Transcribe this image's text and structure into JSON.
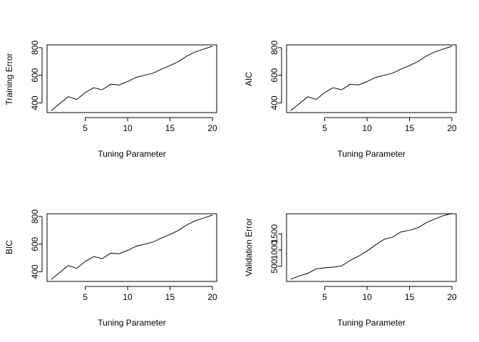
{
  "chart_data": [
    {
      "type": "line",
      "xlabel": "Tuning Parameter",
      "ylabel": "Training Error",
      "xlim": [
        0.5,
        20.5
      ],
      "ylim": [
        330,
        820
      ],
      "xticks": [
        5,
        10,
        15,
        20
      ],
      "yticks": [
        400,
        600,
        800
      ],
      "grid": false,
      "x": [
        1,
        2,
        3,
        4,
        5,
        6,
        7,
        8,
        9,
        10,
        11,
        12,
        13,
        14,
        15,
        16,
        17,
        18,
        19,
        20
      ],
      "y": [
        345,
        395,
        445,
        425,
        475,
        510,
        495,
        535,
        530,
        555,
        585,
        600,
        615,
        645,
        670,
        700,
        740,
        770,
        790,
        810
      ]
    },
    {
      "type": "line",
      "xlabel": "Tuning Parameter",
      "ylabel": "AIC",
      "xlim": [
        0.5,
        20.5
      ],
      "ylim": [
        330,
        820
      ],
      "xticks": [
        5,
        10,
        15,
        20
      ],
      "yticks": [
        400,
        600,
        800
      ],
      "grid": false,
      "x": [
        1,
        2,
        3,
        4,
        5,
        6,
        7,
        8,
        9,
        10,
        11,
        12,
        13,
        14,
        15,
        16,
        17,
        18,
        19,
        20
      ],
      "y": [
        345,
        395,
        445,
        425,
        475,
        510,
        495,
        535,
        530,
        555,
        585,
        600,
        615,
        645,
        670,
        700,
        740,
        770,
        790,
        810
      ]
    },
    {
      "type": "line",
      "xlabel": "Tuning Parameter",
      "ylabel": "BIC",
      "xlim": [
        0.5,
        20.5
      ],
      "ylim": [
        330,
        820
      ],
      "xticks": [
        5,
        10,
        15,
        20
      ],
      "yticks": [
        400,
        600,
        800
      ],
      "grid": false,
      "x": [
        1,
        2,
        3,
        4,
        5,
        6,
        7,
        8,
        9,
        10,
        11,
        12,
        13,
        14,
        15,
        16,
        17,
        18,
        19,
        20
      ],
      "y": [
        345,
        395,
        445,
        425,
        475,
        510,
        495,
        535,
        530,
        555,
        585,
        600,
        615,
        645,
        670,
        700,
        740,
        770,
        790,
        810
      ]
    },
    {
      "type": "line",
      "xlabel": "Tuning Parameter",
      "ylabel": "Validation Error",
      "xlim": [
        0.5,
        20.5
      ],
      "ylim": [
        30,
        2120
      ],
      "xticks": [
        5,
        10,
        15,
        20
      ],
      "yticks": [
        500,
        1000,
        1500
      ],
      "grid": false,
      "x": [
        1,
        2,
        3,
        4,
        5,
        6,
        7,
        8,
        9,
        10,
        11,
        12,
        13,
        14,
        15,
        16,
        17,
        18,
        19,
        20
      ],
      "y": [
        100,
        200,
        280,
        420,
        450,
        470,
        510,
        680,
        810,
        970,
        1160,
        1330,
        1400,
        1560,
        1610,
        1690,
        1850,
        1960,
        2060,
        2130
      ]
    }
  ]
}
